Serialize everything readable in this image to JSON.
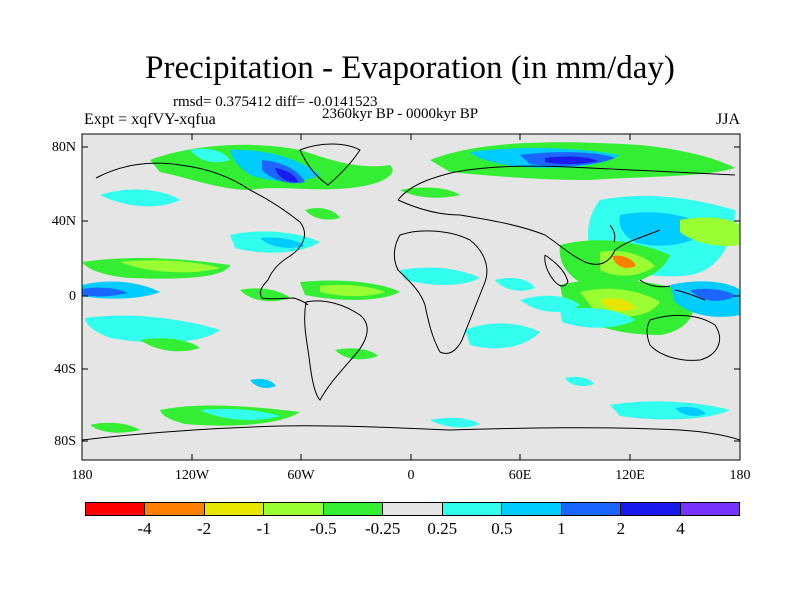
{
  "title": "Precipitation - Evaporation (in mm/day)",
  "stats": "rmsd= 0.375412 diff= -0.0141523",
  "experiment": "Expt = xqfVY-xqfua",
  "period": "2360kyr BP - 0000kyr BP",
  "season": "JJA",
  "map": {
    "background_color": "#e5e5e5",
    "lat_labels": [
      "80N",
      "40N",
      "0",
      "40S",
      "80S"
    ],
    "lon_labels": [
      "180",
      "120W",
      "60W",
      "0",
      "60E",
      "120E",
      "180"
    ]
  },
  "colorbar": {
    "colors": [
      "#ff0000",
      "#ff8000",
      "#e6e600",
      "#99ff33",
      "#33ee33",
      "#e5e5e5",
      "#33ffee",
      "#00ccff",
      "#1a66ff",
      "#1a1aee",
      "#7733ff"
    ],
    "labels": [
      "-4",
      "-2",
      "-1",
      "-0.5",
      "-0.25",
      "0.25",
      "0.5",
      "1",
      "2",
      "4"
    ]
  }
}
